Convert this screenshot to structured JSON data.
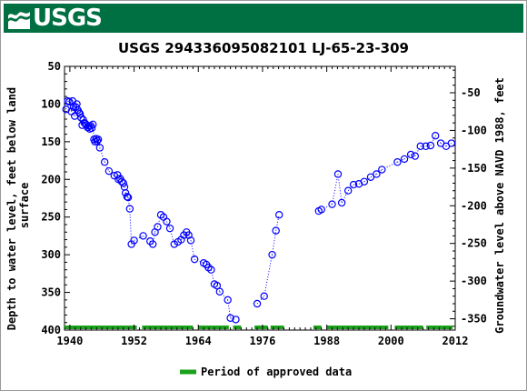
{
  "header": {
    "logo_text": "USGS",
    "logo_icon": "usgs-wave-icon",
    "color": "#006f41"
  },
  "chart_data": {
    "type": "scatter",
    "title": "USGS 294336095082101 LJ-65-23-309",
    "ylabel_left": [
      "Depth to water level, feet below land",
      "surface"
    ],
    "ylabel_right": "Groundwater level above NAVD 1988, feet",
    "xlim": [
      1939,
      2012
    ],
    "ylim_left": [
      400,
      50
    ],
    "ylim_right": [
      -365,
      -15
    ],
    "x_ticks": [
      1940,
      1952,
      1964,
      1976,
      1988,
      2000,
      2012
    ],
    "y_ticks_left": [
      50,
      100,
      150,
      200,
      250,
      300,
      350,
      400
    ],
    "y_ticks_right": [
      -50,
      -100,
      -150,
      -200,
      -250,
      -300,
      -350
    ],
    "marker_color": "#0000ff",
    "series": [
      {
        "x": [
          1939.3,
          1939.6,
          1939.9,
          1940.3,
          1940.5,
          1940.7,
          1940.9,
          1941.1,
          1941.3,
          1941.5,
          1941.7,
          1941.9,
          1942.1,
          1942.3,
          1942.5,
          1942.7,
          1942.9,
          1943.1,
          1943.3,
          1943.5,
          1943.7,
          1943.9,
          1944.1,
          1944.3,
          1944.5,
          1944.7,
          1944.9,
          1945.1,
          1945.3,
          1945.6,
          1946.5,
          1947.3,
          1948.3,
          1948.9,
          1949.1,
          1949.4,
          1949.7,
          1950.0,
          1950.2,
          1950.4,
          1950.7,
          1950.9,
          1951.2,
          1951.5,
          1952.0,
          1953.7,
          1955.0,
          1955.5,
          1955.9,
          1956.4,
          1957.0,
          1957.5,
          1958.1,
          1958.7,
          1959.5,
          1960.2,
          1960.8,
          1961.3,
          1961.8,
          1962.2,
          1962.6,
          1963.3,
          1965.0,
          1965.5,
          1965.9,
          1966.4,
          1967.0,
          1967.5,
          1968.0,
          1969.5,
          1970.0,
          1971.0,
          1975.0,
          1976.3,
          1977.8,
          1978.5,
          1979.1,
          1986.5,
          1987.0,
          1989.0,
          1990.1,
          1990.8,
          1992.0,
          1993.0,
          1994.0,
          1995.0,
          1996.2,
          1997.3,
          1998.3,
          2001.2,
          2002.5,
          2003.7,
          2004.5,
          2005.5,
          2006.5,
          2007.4,
          2008.3,
          2009.3,
          2010.3,
          2011.3
        ],
        "y": [
          107,
          96,
          97,
          110,
          96,
          104,
          116,
          104,
          100,
          108,
          111,
          113,
          118,
          128,
          121,
          125,
          126,
          128,
          131,
          129,
          133,
          129,
          132,
          127,
          147,
          150,
          146,
          149,
          147,
          158,
          177,
          189,
          195,
          194,
          200,
          199,
          203,
          205,
          210,
          218,
          223,
          224,
          239,
          286,
          281,
          275,
          282,
          286,
          270,
          263,
          247,
          250,
          256,
          265,
          286,
          283,
          280,
          274,
          270,
          274,
          281,
          306,
          311,
          313,
          317,
          320,
          339,
          341,
          349,
          360,
          384,
          386,
          365,
          355,
          300,
          268,
          247,
          242,
          240,
          233,
          193,
          231,
          215,
          207,
          206,
          203,
          197,
          193,
          187,
          177,
          173,
          167,
          169,
          156,
          156,
          155,
          142,
          152,
          156,
          152
        ]
      }
    ],
    "approved_periods": [
      [
        1939,
        1952.5
      ],
      [
        1953.5,
        1963
      ],
      [
        1964,
        1969.7
      ],
      [
        1970.5,
        1972
      ],
      [
        1974.5,
        1977
      ],
      [
        1977.5,
        1980
      ],
      [
        1985.5,
        1987
      ],
      [
        1988,
        1999.5
      ],
      [
        2000.7,
        2006
      ],
      [
        2006.6,
        2011.5
      ]
    ],
    "approved_color": "#1aa01a",
    "legend": {
      "label": "Period of approved data",
      "placement": "bottom-center"
    },
    "grid": false
  }
}
